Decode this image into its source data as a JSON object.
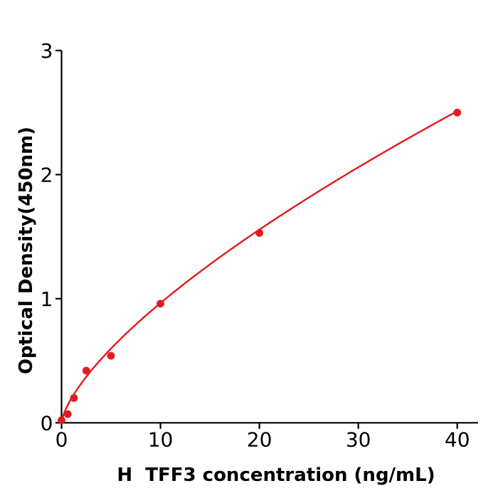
{
  "figure": {
    "background": "#ffffff",
    "axis_color": "#000000",
    "accent_red": "#e41a1c"
  },
  "chart_data": {
    "type": "scatter",
    "title": "",
    "xlabel": "H  TFF3 concentration (ng/mL)",
    "ylabel": "Optical Density(450nm)",
    "x": [
      0,
      0.625,
      1.25,
      2.5,
      5,
      10,
      20,
      40
    ],
    "y": [
      0.02,
      0.07,
      0.2,
      0.42,
      0.54,
      0.96,
      1.53,
      2.5
    ],
    "xticks": [
      0,
      10,
      20,
      30,
      40
    ],
    "yticks": [
      0,
      1,
      2,
      3
    ],
    "xlim": [
      0,
      42
    ],
    "ylim": [
      0,
      3
    ],
    "grid": false,
    "legend": "none",
    "marker_color": "#e41a1c",
    "line_color": "#e41a1c",
    "fit": {
      "model": "power",
      "a": 0.197,
      "b": 0.69
    }
  }
}
